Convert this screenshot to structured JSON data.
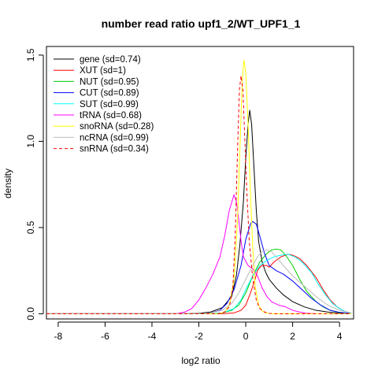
{
  "chart_data": {
    "type": "line",
    "title": "number read ratio upf1_2/WT_UPF1_1",
    "xlabel": "log2 ratio",
    "ylabel": "density",
    "xlim": [
      -8.5,
      4.6
    ],
    "ylim": [
      -0.03,
      1.55
    ],
    "x_ticks": [
      -8,
      -6,
      -4,
      -2,
      0,
      2,
      4
    ],
    "y_ticks": [
      0.0,
      0.5,
      1.0,
      1.5
    ],
    "x_tick_labels": [
      "-8",
      "-6",
      "-4",
      "-2",
      "0",
      "2",
      "4"
    ],
    "y_tick_labels": [
      "0.0",
      "0.5",
      "1.0",
      "1.5"
    ],
    "legend_position": "top-left",
    "grid": false,
    "series": [
      {
        "name": "gene (sd=0.74)",
        "color": "#000000",
        "dashed": false,
        "points": [
          [
            -8.5,
            0
          ],
          [
            -3,
            0
          ],
          [
            -2,
            0.003
          ],
          [
            -1.5,
            0.01
          ],
          [
            -1,
            0.035
          ],
          [
            -0.6,
            0.1
          ],
          [
            -0.4,
            0.22
          ],
          [
            -0.25,
            0.4
          ],
          [
            -0.1,
            0.65
          ],
          [
            0,
            0.9
          ],
          [
            0.1,
            1.1
          ],
          [
            0.17,
            1.18
          ],
          [
            0.25,
            1.1
          ],
          [
            0.35,
            0.85
          ],
          [
            0.45,
            0.6
          ],
          [
            0.55,
            0.42
          ],
          [
            0.7,
            0.3
          ],
          [
            0.85,
            0.24
          ],
          [
            1.0,
            0.2
          ],
          [
            1.3,
            0.15
          ],
          [
            1.6,
            0.11
          ],
          [
            2.0,
            0.07
          ],
          [
            2.5,
            0.04
          ],
          [
            3.0,
            0.02
          ],
          [
            3.5,
            0.01
          ],
          [
            4.0,
            0.004
          ],
          [
            4.5,
            0
          ]
        ]
      },
      {
        "name": "XUT (sd=1)",
        "color": "#ff0000",
        "dashed": false,
        "points": [
          [
            -8.5,
            0
          ],
          [
            -1,
            0
          ],
          [
            -0.5,
            0.005
          ],
          [
            -0.2,
            0.02
          ],
          [
            0,
            0.05
          ],
          [
            0.2,
            0.12
          ],
          [
            0.4,
            0.2
          ],
          [
            0.5,
            0.25
          ],
          [
            0.6,
            0.27
          ],
          [
            0.7,
            0.28
          ],
          [
            0.9,
            0.28
          ],
          [
            1.0,
            0.27
          ],
          [
            1.2,
            0.3
          ],
          [
            1.5,
            0.33
          ],
          [
            1.8,
            0.345
          ],
          [
            2.0,
            0.34
          ],
          [
            2.3,
            0.32
          ],
          [
            2.6,
            0.28
          ],
          [
            3.0,
            0.21
          ],
          [
            3.3,
            0.14
          ],
          [
            3.6,
            0.08
          ],
          [
            3.9,
            0.04
          ],
          [
            4.2,
            0.015
          ],
          [
            4.5,
            0.003
          ]
        ]
      },
      {
        "name": "NUT (sd=0.95)",
        "color": "#00cc00",
        "dashed": false,
        "points": [
          [
            -8.5,
            0
          ],
          [
            -1.5,
            0
          ],
          [
            -1,
            0.005
          ],
          [
            -0.6,
            0.02
          ],
          [
            -0.3,
            0.05
          ],
          [
            0,
            0.12
          ],
          [
            0.3,
            0.22
          ],
          [
            0.6,
            0.3
          ],
          [
            0.9,
            0.35
          ],
          [
            1.1,
            0.37
          ],
          [
            1.3,
            0.375
          ],
          [
            1.5,
            0.37
          ],
          [
            1.7,
            0.34
          ],
          [
            2.0,
            0.28
          ],
          [
            2.3,
            0.2
          ],
          [
            2.6,
            0.13
          ],
          [
            3.0,
            0.07
          ],
          [
            3.3,
            0.04
          ],
          [
            3.6,
            0.02
          ],
          [
            4.0,
            0.008
          ],
          [
            4.3,
            0.003
          ],
          [
            4.5,
            0
          ]
        ]
      },
      {
        "name": "CUT (sd=0.89)",
        "color": "#0000ff",
        "dashed": false,
        "points": [
          [
            -8.5,
            0
          ],
          [
            -2,
            0
          ],
          [
            -1.5,
            0.005
          ],
          [
            -1.1,
            0.02
          ],
          [
            -0.8,
            0.06
          ],
          [
            -0.5,
            0.14
          ],
          [
            -0.2,
            0.28
          ],
          [
            0,
            0.43
          ],
          [
            0.2,
            0.52
          ],
          [
            0.3,
            0.535
          ],
          [
            0.45,
            0.52
          ],
          [
            0.6,
            0.45
          ],
          [
            0.8,
            0.35
          ],
          [
            1.0,
            0.28
          ],
          [
            1.3,
            0.25
          ],
          [
            1.6,
            0.23
          ],
          [
            2.0,
            0.19
          ],
          [
            2.4,
            0.14
          ],
          [
            2.8,
            0.09
          ],
          [
            3.2,
            0.05
          ],
          [
            3.6,
            0.02
          ],
          [
            4.0,
            0.008
          ],
          [
            4.5,
            0.002
          ]
        ]
      },
      {
        "name": "SUT (sd=0.99)",
        "color": "#00ffff",
        "dashed": false,
        "points": [
          [
            -8.5,
            0
          ],
          [
            -1.5,
            0
          ],
          [
            -1,
            0.005
          ],
          [
            -0.5,
            0.03
          ],
          [
            -0.2,
            0.08
          ],
          [
            0,
            0.14
          ],
          [
            0.3,
            0.22
          ],
          [
            0.6,
            0.28
          ],
          [
            0.9,
            0.31
          ],
          [
            1.2,
            0.33
          ],
          [
            1.5,
            0.34
          ],
          [
            1.8,
            0.345
          ],
          [
            2.1,
            0.33
          ],
          [
            2.4,
            0.3
          ],
          [
            2.8,
            0.24
          ],
          [
            3.1,
            0.17
          ],
          [
            3.4,
            0.11
          ],
          [
            3.7,
            0.06
          ],
          [
            4.0,
            0.03
          ],
          [
            4.3,
            0.01
          ],
          [
            4.5,
            0.004
          ]
        ]
      },
      {
        "name": "tRNA (sd=0.68)",
        "color": "#ff00ff",
        "dashed": false,
        "points": [
          [
            -8.5,
            0
          ],
          [
            -3,
            0
          ],
          [
            -2.6,
            0.01
          ],
          [
            -2.3,
            0.03
          ],
          [
            -2.0,
            0.08
          ],
          [
            -1.7,
            0.15
          ],
          [
            -1.4,
            0.23
          ],
          [
            -1.1,
            0.33
          ],
          [
            -0.9,
            0.45
          ],
          [
            -0.7,
            0.6
          ],
          [
            -0.5,
            0.69
          ],
          [
            -0.4,
            0.65
          ],
          [
            -0.3,
            0.55
          ],
          [
            -0.2,
            0.42
          ],
          [
            -0.1,
            0.33
          ],
          [
            0.1,
            0.28
          ],
          [
            0.3,
            0.26
          ],
          [
            0.5,
            0.22
          ],
          [
            0.7,
            0.15
          ],
          [
            0.9,
            0.1
          ],
          [
            1.1,
            0.07
          ],
          [
            1.4,
            0.05
          ],
          [
            1.7,
            0.04
          ],
          [
            2.0,
            0.02
          ],
          [
            2.3,
            0.01
          ],
          [
            2.6,
            0.003
          ],
          [
            3.0,
            0
          ]
        ]
      },
      {
        "name": "snoRNA (sd=0.28)",
        "color": "#ffff00",
        "dashed": false,
        "points": [
          [
            -8.5,
            0
          ],
          [
            -1.2,
            0
          ],
          [
            -0.9,
            0.01
          ],
          [
            -0.7,
            0.05
          ],
          [
            -0.5,
            0.2
          ],
          [
            -0.35,
            0.55
          ],
          [
            -0.25,
            0.95
          ],
          [
            -0.15,
            1.35
          ],
          [
            -0.08,
            1.47
          ],
          [
            0,
            1.4
          ],
          [
            0.1,
            1.1
          ],
          [
            0.2,
            0.7
          ],
          [
            0.3,
            0.38
          ],
          [
            0.4,
            0.16
          ],
          [
            0.55,
            0.05
          ],
          [
            0.7,
            0.015
          ],
          [
            0.9,
            0.003
          ],
          [
            1.2,
            0
          ],
          [
            4.5,
            0
          ]
        ]
      },
      {
        "name": "ncRNA (sd=0.99)",
        "color": "#bbbbbb",
        "dashed": false,
        "points": [
          [
            -8.5,
            0
          ],
          [
            -2,
            0
          ],
          [
            -1.5,
            0.005
          ],
          [
            -1,
            0.02
          ],
          [
            -0.6,
            0.06
          ],
          [
            -0.3,
            0.12
          ],
          [
            0,
            0.2
          ],
          [
            0.3,
            0.28
          ],
          [
            0.5,
            0.33
          ],
          [
            0.7,
            0.36
          ],
          [
            0.9,
            0.37
          ],
          [
            1.1,
            0.36
          ],
          [
            1.3,
            0.33
          ],
          [
            1.6,
            0.28
          ],
          [
            2.0,
            0.22
          ],
          [
            2.5,
            0.16
          ],
          [
            3.0,
            0.1
          ],
          [
            3.5,
            0.05
          ],
          [
            4.0,
            0.02
          ],
          [
            4.5,
            0.005
          ]
        ]
      },
      {
        "name": "snRNA (sd=0.34)",
        "color": "#ff0000",
        "dashed": true,
        "points": [
          [
            -8.5,
            0
          ],
          [
            -1.2,
            0
          ],
          [
            -0.9,
            0.01
          ],
          [
            -0.7,
            0.04
          ],
          [
            -0.55,
            0.15
          ],
          [
            -0.45,
            0.45
          ],
          [
            -0.35,
            0.95
          ],
          [
            -0.27,
            1.3
          ],
          [
            -0.2,
            1.38
          ],
          [
            -0.12,
            1.3
          ],
          [
            -0.05,
            1.05
          ],
          [
            0.05,
            0.7
          ],
          [
            0.15,
            0.42
          ],
          [
            0.3,
            0.2
          ],
          [
            0.45,
            0.08
          ],
          [
            0.6,
            0.03
          ],
          [
            0.8,
            0.01
          ],
          [
            1.0,
            0.002
          ],
          [
            1.3,
            0
          ],
          [
            4.5,
            0
          ]
        ]
      }
    ]
  }
}
